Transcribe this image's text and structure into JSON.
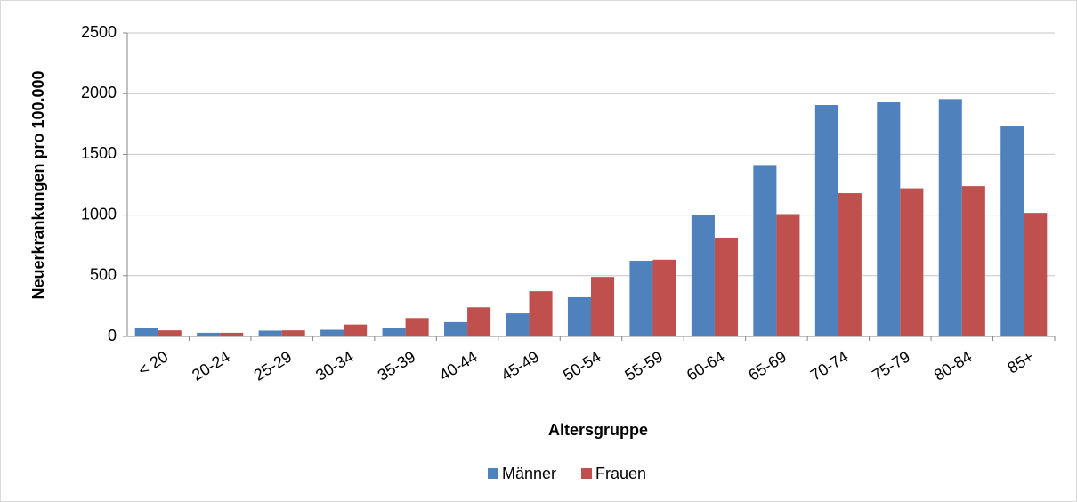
{
  "chart_data": {
    "type": "bar",
    "x_label": "Altersgruppe",
    "y_label": "Neuerkrankungen pro 100.000",
    "categories": [
      "< 20",
      "20-24",
      "25-29",
      "30-34",
      "35-39",
      "40-44",
      "45-49",
      "50-54",
      "55-59",
      "60-64",
      "65-69",
      "70-74",
      "75-79",
      "80-84",
      "85+"
    ],
    "series": [
      {
        "name": "Männer",
        "color": "#4f81bd",
        "values": [
          66,
          30,
          48,
          55,
          72,
          118,
          190,
          323,
          623,
          1004,
          1412,
          1906,
          1928,
          1955,
          1730
        ]
      },
      {
        "name": "Frauen",
        "color": "#c0504d",
        "values": [
          50,
          30,
          50,
          98,
          152,
          240,
          373,
          490,
          632,
          814,
          1008,
          1180,
          1220,
          1238,
          1018
        ]
      }
    ],
    "ylim": [
      0,
      2500
    ],
    "yticks": [
      0,
      500,
      1000,
      1500,
      2000,
      2500
    ],
    "grid": true,
    "legend": "bottom"
  }
}
